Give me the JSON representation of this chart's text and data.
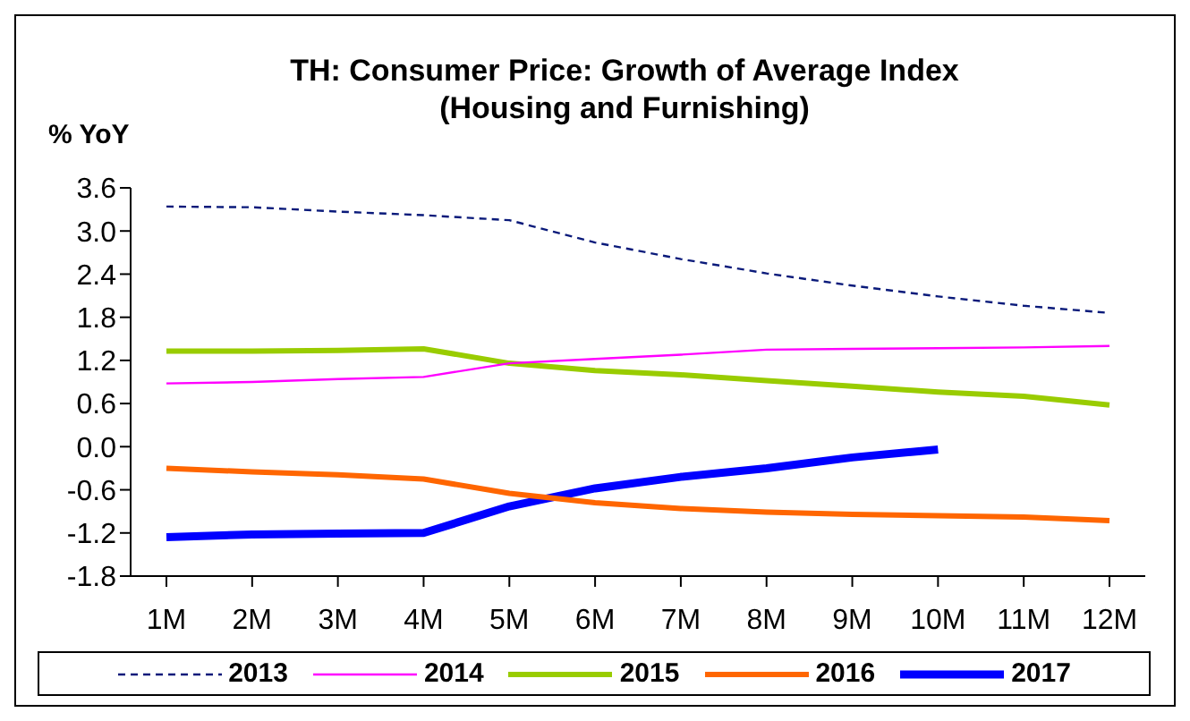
{
  "chart_data": {
    "type": "line",
    "title": "TH: Consumer Price: Growth of Average Index\n(Housing and Furnishing)",
    "ylabel": "% YoY",
    "categories": [
      "1M",
      "2M",
      "3M",
      "4M",
      "5M",
      "6M",
      "7M",
      "8M",
      "9M",
      "10M",
      "11M",
      "12M"
    ],
    "series": [
      {
        "name": "2013",
        "color": "#0a1a7a",
        "line_style": "dashed",
        "values": [
          3.34,
          3.33,
          3.27,
          3.22,
          3.15,
          2.84,
          2.61,
          2.41,
          2.24,
          2.09,
          1.96,
          1.86
        ]
      },
      {
        "name": "2014",
        "color": "#ff00ff",
        "values": [
          0.88,
          0.9,
          0.94,
          0.97,
          1.16,
          1.22,
          1.28,
          1.35,
          1.36,
          1.37,
          1.38,
          1.4
        ]
      },
      {
        "name": "2015",
        "color": "#99cc00",
        "values": [
          1.33,
          1.33,
          1.34,
          1.36,
          1.16,
          1.06,
          1.0,
          0.92,
          0.84,
          0.76,
          0.7,
          0.58
        ]
      },
      {
        "name": "2016",
        "color": "#ff6600",
        "values": [
          -0.3,
          -0.35,
          -0.39,
          -0.45,
          -0.65,
          -0.78,
          -0.86,
          -0.91,
          -0.94,
          -0.96,
          -0.98,
          -1.03
        ]
      },
      {
        "name": "2017",
        "color": "#0000ff",
        "values": [
          -1.26,
          -1.22,
          -1.21,
          -1.2,
          -0.83,
          -0.58,
          -0.42,
          -0.3,
          -0.15,
          -0.04,
          null,
          null
        ]
      }
    ],
    "ylim": [
      -1.8,
      3.6
    ],
    "yticks": [
      3.6,
      {
        "value": 3.0,
        "label": "3.0"
      },
      2.4,
      1.8,
      1.2,
      0.6,
      {
        "value": 0,
        "label": "0.0"
      },
      -0.6,
      -1.2,
      -1.8
    ],
    "grid": false,
    "legend": "bottom",
    "marker": "none",
    "line_style": "solid"
  }
}
